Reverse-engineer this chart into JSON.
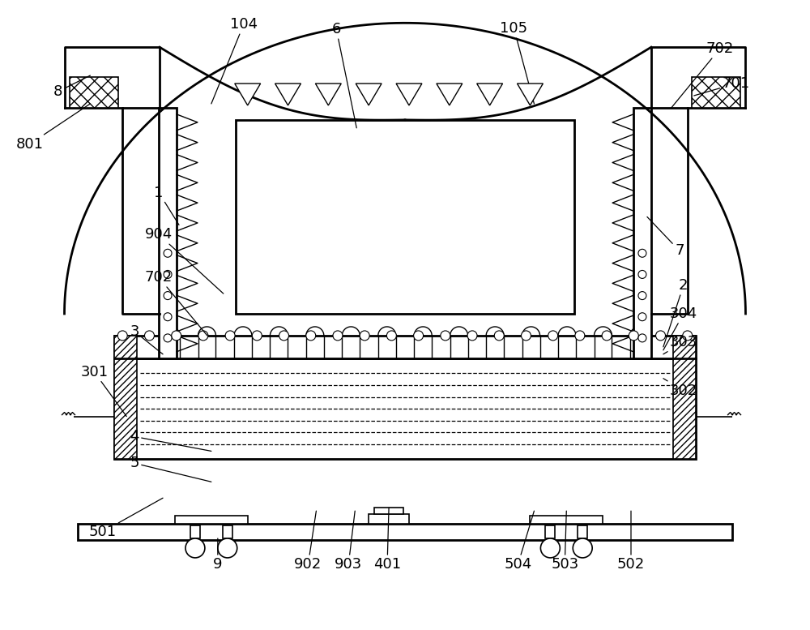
{
  "background_color": "#ffffff",
  "line_color": "#000000",
  "label_color": "#000000",
  "fig_width": 10.0,
  "fig_height": 7.77
}
